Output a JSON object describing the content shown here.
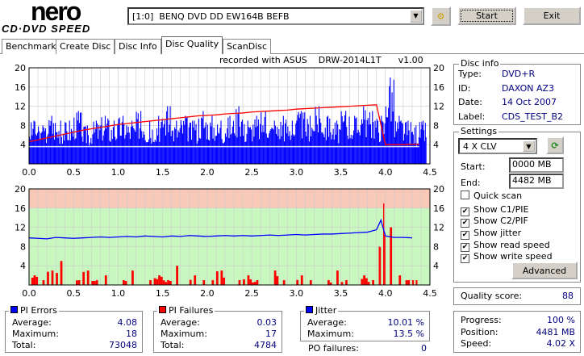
{
  "app": {
    "logo_top": "nero",
    "logo_bottom": "CD·DVD SPEED"
  },
  "drive": {
    "selected": "[1:0]  BENQ DVD DD EW164B BEFB"
  },
  "toolbar": {
    "start_label": "Start",
    "exit_label": "Exit"
  },
  "tabs": [
    {
      "label": "Benchmark"
    },
    {
      "label": "Create Disc"
    },
    {
      "label": "Disc Info"
    },
    {
      "label": "Disc Quality",
      "active": true
    },
    {
      "label": "ScanDisc"
    }
  ],
  "chart_header": "recorded with ASUS    DRW-2014L1T      v1.00",
  "disc_info": {
    "title": "Disc info",
    "type_label": "Type:",
    "type": "DVD+R",
    "id_label": "ID:",
    "id": "DAXON AZ3",
    "date_label": "Date:",
    "date": "14 Oct 2007",
    "label_label": "Label:",
    "label": "CDS_TEST_B2"
  },
  "settings": {
    "title": "Settings",
    "speed": "4 X CLV",
    "start_label": "Start:",
    "start": "0000 MB",
    "end_label": "End:",
    "end": "4482 MB",
    "checks": [
      {
        "label": "Quick scan",
        "checked": false
      },
      {
        "label": "Show C1/PIE",
        "checked": true
      },
      {
        "label": "Show C2/PIF",
        "checked": true
      },
      {
        "label": "Show jitter",
        "checked": true
      },
      {
        "label": "Show read speed",
        "checked": true
      },
      {
        "label": "Show write speed",
        "checked": true
      }
    ],
    "advanced_label": "Advanced"
  },
  "quality": {
    "label": "Quality score:",
    "value": "88"
  },
  "progress": {
    "progress_label": "Progress:",
    "progress": "100 %",
    "position_label": "Position:",
    "position": "4481 MB",
    "speed_label": "Speed:",
    "speed": "4.02 X"
  },
  "pi_errors": {
    "title": "PI Errors",
    "color": "#0000ff",
    "avg_label": "Average:",
    "avg": "4.08",
    "max_label": "Maximum:",
    "max": "18",
    "total_label": "Total:",
    "total": "73048"
  },
  "pi_failures": {
    "title": "PI Failures",
    "color": "#ff0000",
    "avg_label": "Average:",
    "avg": "0.03",
    "max_label": "Maximum:",
    "max": "17",
    "total_label": "Total:",
    "total": "4784"
  },
  "jitter": {
    "title": "Jitter",
    "color": "#0000ff",
    "avg_label": "Average:",
    "avg": "10.01 %",
    "max_label": "Maximum:",
    "max": "13.5 %",
    "po_label": "PO failures:",
    "po": "0"
  },
  "chart_data": [
    {
      "type": "bar",
      "name": "PI errors + read speed",
      "xlim": [
        0,
        4.5
      ],
      "ylim": [
        0,
        20
      ],
      "yticks": [
        "20",
        "16",
        "12",
        "8",
        "4"
      ],
      "y2ticks": [
        "20",
        "16",
        "12",
        "8",
        "4"
      ],
      "xticks": [
        "0.0",
        "0.5",
        "1.0",
        "1.5",
        "2.0",
        "2.5",
        "3.0",
        "3.5",
        "4.0",
        "4.5"
      ],
      "x": [
        0.0,
        0.1,
        0.2,
        0.3,
        0.4,
        0.5,
        0.6,
        0.7,
        0.8,
        0.9,
        1.0,
        1.1,
        1.2,
        1.3,
        1.4,
        1.5,
        1.6,
        1.7,
        1.8,
        1.9,
        2.0,
        2.1,
        2.2,
        2.3,
        2.4,
        2.5,
        2.6,
        2.7,
        2.8,
        2.9,
        3.0,
        3.1,
        3.2,
        3.3,
        3.4,
        3.5,
        3.6,
        3.7,
        3.8,
        3.9,
        4.0,
        4.1,
        4.2,
        4.3,
        4.38
      ],
      "pi_errors": [
        9,
        8,
        10,
        9,
        9,
        11,
        8,
        9,
        10,
        9,
        10,
        9,
        11,
        9,
        10,
        12,
        9,
        10,
        9,
        11,
        10,
        9,
        10,
        12,
        9,
        10,
        11,
        9,
        10,
        9,
        11,
        10,
        12,
        10,
        9,
        11,
        10,
        12,
        11,
        10,
        18,
        10,
        9,
        8,
        9
      ],
      "read_speed": [
        4.6,
        5.0,
        5.4,
        5.8,
        6.2,
        6.6,
        7.0,
        7.3,
        7.6,
        7.9,
        8.2,
        8.4,
        8.6,
        8.8,
        9.0,
        9.2,
        9.4,
        9.6,
        9.8,
        10.0,
        10.1,
        10.2,
        10.4,
        10.5,
        10.6,
        10.8,
        10.9,
        11.0,
        11.1,
        11.2,
        11.4,
        11.5,
        11.6,
        11.7,
        11.8,
        11.9,
        12.0,
        12.1,
        12.2,
        12.3,
        4.0,
        4.0,
        4.0,
        4.1,
        4.1
      ]
    },
    {
      "type": "bar",
      "name": "PI failures + jitter",
      "xlim": [
        0,
        4.5
      ],
      "ylim": [
        0,
        20
      ],
      "yticks": [
        "20",
        "16",
        "12",
        "8",
        "4"
      ],
      "y2ticks": [
        "20",
        "16",
        "12",
        "8",
        "4"
      ],
      "xticks": [
        "0.0",
        "0.5",
        "1.0",
        "1.5",
        "2.0",
        "2.5",
        "3.0",
        "3.5",
        "4.0",
        "4.5"
      ],
      "x": [
        0.0,
        0.1,
        0.2,
        0.3,
        0.4,
        0.5,
        0.6,
        0.7,
        0.8,
        0.9,
        1.0,
        1.1,
        1.2,
        1.3,
        1.4,
        1.5,
        1.6,
        1.7,
        1.8,
        1.9,
        2.0,
        2.1,
        2.2,
        2.3,
        2.4,
        2.5,
        2.6,
        2.7,
        2.8,
        2.9,
        3.0,
        3.1,
        3.2,
        3.3,
        3.4,
        3.5,
        3.6,
        3.7,
        3.8,
        3.9,
        3.95,
        4.0,
        4.1,
        4.2,
        4.3
      ],
      "pi_failures": [
        2,
        1,
        3,
        5,
        0,
        1,
        3,
        1,
        2,
        0,
        1,
        3,
        0,
        1,
        2,
        1,
        4,
        0,
        2,
        1,
        1,
        3,
        0,
        1,
        2,
        1,
        0,
        3,
        1,
        0,
        2,
        1,
        0,
        1,
        3,
        1,
        0,
        2,
        1,
        8,
        17,
        12,
        2,
        1,
        1
      ],
      "jitter": [
        9.8,
        9.7,
        9.6,
        9.9,
        9.8,
        9.7,
        9.8,
        9.9,
        10.0,
        9.9,
        10.0,
        10.1,
        10.0,
        10.2,
        10.1,
        10.0,
        10.2,
        10.1,
        10.3,
        10.2,
        10.1,
        10.2,
        10.3,
        10.2,
        10.3,
        10.2,
        10.3,
        10.4,
        10.3,
        10.4,
        10.5,
        10.4,
        10.5,
        10.6,
        10.6,
        10.7,
        10.8,
        10.9,
        11.0,
        11.5,
        13.5,
        10.2,
        9.9,
        9.9,
        9.8
      ]
    }
  ]
}
